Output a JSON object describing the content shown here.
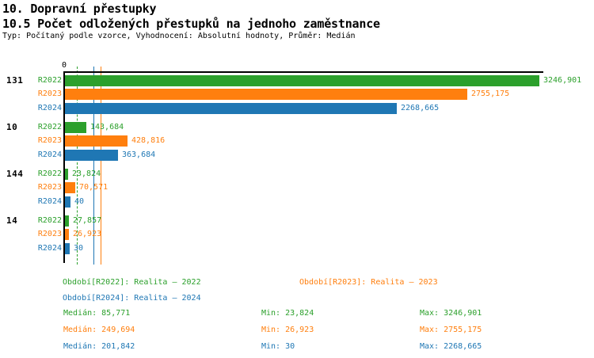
{
  "header": {
    "title": "10. Dopravní přestupky",
    "subtitle": "10.5 Počet odložených přestupků na jednoho zaměstnance",
    "meta": "Typ: Počítaný podle vzorce, Vyhodnocení: Absolutní hodnoty, Průměr: Medián"
  },
  "axis": {
    "zero_label": "0"
  },
  "colors": {
    "R2022": "#2ca02c",
    "R2023": "#ff7f0e",
    "R2024": "#1f77b4",
    "axis": "#000000"
  },
  "chart_data": {
    "type": "bar",
    "orientation": "horizontal",
    "title": "10.5 Počet odložených přestupků na jednoho zaměstnance",
    "categories": [
      "131",
      "10",
      "144",
      "14"
    ],
    "series": [
      {
        "name": "R2022",
        "color": "#2ca02c",
        "values": [
          3246.901,
          143.684,
          23.824,
          27.857
        ],
        "labels": [
          "3246,901",
          "143,684",
          "23,824",
          "27,857"
        ],
        "median": 85.771,
        "median_line_style": "dashed"
      },
      {
        "name": "R2023",
        "color": "#ff7f0e",
        "values": [
          2755.175,
          428.816,
          70.571,
          26.923
        ],
        "labels": [
          "2755,175",
          "428,816",
          "70,571",
          "26,923"
        ],
        "median": 249.694,
        "median_line_style": "solid"
      },
      {
        "name": "R2024",
        "color": "#1f77b4",
        "values": [
          2268.665,
          363.684,
          40,
          30
        ],
        "labels": [
          "2268,665",
          "363,684",
          "40",
          "30"
        ],
        "median": 201.842,
        "median_line_style": "solid"
      }
    ],
    "xlim": [
      0,
      3280
    ],
    "x_zero_label": "0",
    "grid": false,
    "legend_position": "bottom"
  },
  "legend": {
    "rows": [
      [
        {
          "series": "R2022",
          "text": "Období[R2022]: Realita – 2022"
        },
        {
          "series": "R2023",
          "text": "Období[R2023]: Realita – 2023"
        }
      ],
      [
        {
          "series": "R2024",
          "text": "Období[R2024]: Realita – 2024"
        }
      ]
    ]
  },
  "stats": {
    "median_label": "Medián",
    "min_label": "Min",
    "max_label": "Max",
    "rows": [
      {
        "series": "R2022",
        "median": "85,771",
        "min": "23,824",
        "max": "3246,901"
      },
      {
        "series": "R2023",
        "median": "249,694",
        "min": "26,923",
        "max": "2755,175"
      },
      {
        "series": "R2024",
        "median": "201,842",
        "min": "30",
        "max": "2268,665"
      }
    ]
  }
}
